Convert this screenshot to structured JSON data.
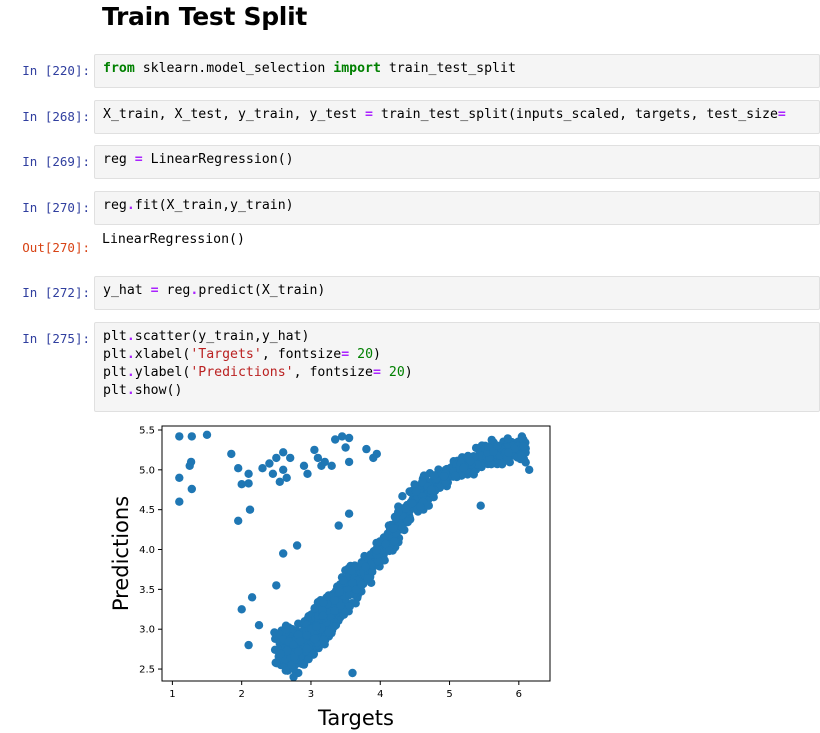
{
  "heading": "Train Test Split",
  "cells": [
    {
      "prompt": "In [220]:",
      "code": [
        [
          [
            "kw",
            "from"
          ],
          [
            "t",
            " sklearn.model_selection "
          ],
          [
            "kw",
            "import"
          ],
          [
            "t",
            " train_test_split"
          ]
        ]
      ]
    },
    {
      "prompt": "In [268]:",
      "code": [
        [
          [
            "t",
            "X_train, X_test, y_train, y_test "
          ],
          [
            "op",
            "="
          ],
          [
            "t",
            " train_test_split(inputs_scaled, targets, test_size"
          ],
          [
            "op",
            "="
          ]
        ]
      ]
    },
    {
      "prompt": "In [269]:",
      "code": [
        [
          [
            "t",
            "reg "
          ],
          [
            "op",
            "="
          ],
          [
            "t",
            " LinearRegression()"
          ]
        ]
      ]
    },
    {
      "prompt": "In [270]:",
      "code": [
        [
          [
            "t",
            "reg"
          ],
          [
            "op",
            "."
          ],
          [
            "t",
            "fit(X_train,y_train)"
          ]
        ]
      ]
    },
    {
      "prompt": "In [272]:",
      "code": [
        [
          [
            "t",
            "y_hat "
          ],
          [
            "op",
            "="
          ],
          [
            "t",
            " reg"
          ],
          [
            "op",
            "."
          ],
          [
            "t",
            "predict(X_train)"
          ]
        ]
      ]
    },
    {
      "prompt": "In [275]:",
      "code": [
        [
          [
            "t",
            "plt"
          ],
          [
            "op",
            "."
          ],
          [
            "t",
            "scatter(y_train,y_hat)"
          ]
        ],
        [
          [
            "t",
            "plt"
          ],
          [
            "op",
            "."
          ],
          [
            "t",
            "xlabel("
          ],
          [
            "str",
            "'Targets'"
          ],
          [
            "t",
            ", fontsize"
          ],
          [
            "op",
            "="
          ],
          [
            "t",
            " "
          ],
          [
            "num",
            "20"
          ],
          [
            "t",
            ")"
          ]
        ],
        [
          [
            "t",
            "plt"
          ],
          [
            "op",
            "."
          ],
          [
            "t",
            "ylabel("
          ],
          [
            "str",
            "'Predictions'"
          ],
          [
            "t",
            ", fontsize"
          ],
          [
            "op",
            "="
          ],
          [
            "t",
            " "
          ],
          [
            "num",
            "20"
          ],
          [
            "t",
            ")"
          ]
        ],
        [
          [
            "t",
            "plt"
          ],
          [
            "op",
            "."
          ],
          [
            "t",
            "show()"
          ]
        ]
      ]
    }
  ],
  "output_270": {
    "prompt": "Out[270]:",
    "text": "LinearRegression()"
  },
  "colors": {
    "marker": "#1f77b4",
    "prompt_in": "#303f9f",
    "prompt_out": "#d84315"
  },
  "chart_data": {
    "type": "scatter",
    "xlabel": "Targets",
    "ylabel": "Predictions",
    "xlim": [
      0.85,
      6.45
    ],
    "ylim": [
      2.35,
      5.55
    ],
    "xticks": [
      "1",
      "2",
      "3",
      "4",
      "5",
      "6"
    ],
    "yticks": [
      "2.5",
      "3.0",
      "3.5",
      "4.0",
      "4.5",
      "5.0",
      "5.5"
    ],
    "grid": false,
    "series": [
      {
        "color": "#1f77b4",
        "main_cloud": [
          {
            "x": 2.8,
            "y": 2.75
          },
          {
            "x": 3.0,
            "y": 2.9
          },
          {
            "x": 3.2,
            "y": 3.1
          },
          {
            "x": 3.5,
            "y": 3.45
          },
          {
            "x": 3.8,
            "y": 3.75
          },
          {
            "x": 4.1,
            "y": 4.1
          },
          {
            "x": 4.4,
            "y": 4.5
          },
          {
            "x": 4.8,
            "y": 4.85
          },
          {
            "x": 5.2,
            "y": 5.05
          },
          {
            "x": 5.6,
            "y": 5.2
          },
          {
            "x": 5.9,
            "y": 5.25
          }
        ],
        "points": [
          {
            "x": 1.1,
            "y": 5.42
          },
          {
            "x": 1.28,
            "y": 5.42
          },
          {
            "x": 1.5,
            "y": 5.44
          },
          {
            "x": 1.1,
            "y": 4.9
          },
          {
            "x": 1.25,
            "y": 5.05
          },
          {
            "x": 1.27,
            "y": 5.1
          },
          {
            "x": 1.28,
            "y": 4.76
          },
          {
            "x": 1.1,
            "y": 4.6
          },
          {
            "x": 1.85,
            "y": 5.2
          },
          {
            "x": 1.95,
            "y": 5.02
          },
          {
            "x": 2.1,
            "y": 4.95
          },
          {
            "x": 2.1,
            "y": 4.83
          },
          {
            "x": 2.0,
            "y": 4.82
          },
          {
            "x": 2.12,
            "y": 4.5
          },
          {
            "x": 1.95,
            "y": 4.36
          },
          {
            "x": 2.3,
            "y": 5.02
          },
          {
            "x": 2.4,
            "y": 5.08
          },
          {
            "x": 2.45,
            "y": 4.95
          },
          {
            "x": 2.5,
            "y": 5.15
          },
          {
            "x": 2.55,
            "y": 4.85
          },
          {
            "x": 2.6,
            "y": 5.0
          },
          {
            "x": 2.65,
            "y": 4.9
          },
          {
            "x": 2.6,
            "y": 5.22
          },
          {
            "x": 2.7,
            "y": 5.15
          },
          {
            "x": 2.9,
            "y": 5.05
          },
          {
            "x": 2.95,
            "y": 4.95
          },
          {
            "x": 3.05,
            "y": 5.25
          },
          {
            "x": 3.1,
            "y": 5.15
          },
          {
            "x": 3.15,
            "y": 5.05
          },
          {
            "x": 3.2,
            "y": 5.1
          },
          {
            "x": 3.3,
            "y": 5.05
          },
          {
            "x": 3.35,
            "y": 5.38
          },
          {
            "x": 3.45,
            "y": 5.42
          },
          {
            "x": 3.55,
            "y": 5.4
          },
          {
            "x": 3.5,
            "y": 5.28
          },
          {
            "x": 3.55,
            "y": 5.1
          },
          {
            "x": 3.8,
            "y": 5.26
          },
          {
            "x": 3.9,
            "y": 5.15
          },
          {
            "x": 3.95,
            "y": 5.2
          },
          {
            "x": 2.0,
            "y": 3.25
          },
          {
            "x": 2.15,
            "y": 3.4
          },
          {
            "x": 2.1,
            "y": 2.8
          },
          {
            "x": 2.25,
            "y": 3.05
          },
          {
            "x": 2.5,
            "y": 3.55
          },
          {
            "x": 2.6,
            "y": 3.95
          },
          {
            "x": 2.8,
            "y": 4.05
          },
          {
            "x": 3.4,
            "y": 4.3
          },
          {
            "x": 3.55,
            "y": 4.45
          },
          {
            "x": 4.4,
            "y": 4.35
          },
          {
            "x": 4.7,
            "y": 4.55
          },
          {
            "x": 5.45,
            "y": 4.55
          },
          {
            "x": 6.15,
            "y": 5.0
          },
          {
            "x": 3.6,
            "y": 2.45
          },
          {
            "x": 2.75,
            "y": 2.4
          }
        ]
      }
    ]
  }
}
